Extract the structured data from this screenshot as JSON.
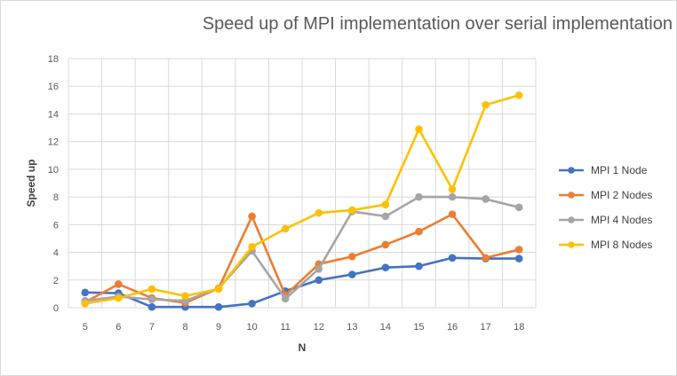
{
  "chart_data": {
    "type": "line",
    "title": "Speed up of MPI implementation over serial implementation",
    "xlabel": "N",
    "ylabel": "Speed up",
    "x": [
      5,
      6,
      7,
      8,
      9,
      10,
      11,
      12,
      13,
      14,
      15,
      16,
      17,
      18
    ],
    "ylim": [
      0,
      18
    ],
    "yticks": [
      0,
      2,
      4,
      6,
      8,
      10,
      12,
      14,
      16,
      18
    ],
    "grid": true,
    "legend_position": "right",
    "series": [
      {
        "name": "MPI 1 Node",
        "color": "#4472C4",
        "values": [
          1.1,
          1.05,
          0.05,
          0.05,
          0.05,
          0.3,
          1.2,
          2.0,
          2.4,
          2.9,
          3.0,
          3.6,
          3.55,
          3.55
        ]
      },
      {
        "name": "MPI 2 Nodes",
        "color": "#ED7D31",
        "values": [
          0.4,
          1.7,
          0.7,
          0.35,
          1.4,
          6.6,
          0.9,
          3.15,
          3.7,
          4.55,
          5.5,
          6.75,
          3.6,
          4.2
        ]
      },
      {
        "name": "MPI 4 Nodes",
        "color": "#A5A5A5",
        "values": [
          0.5,
          0.8,
          0.6,
          0.5,
          1.4,
          4.1,
          0.65,
          2.8,
          6.95,
          6.6,
          8.0,
          8.0,
          7.85,
          7.25
        ]
      },
      {
        "name": "MPI 8 Nodes",
        "color": "#FFC000",
        "values": [
          0.3,
          0.7,
          1.35,
          0.85,
          1.35,
          4.4,
          5.7,
          6.85,
          7.05,
          7.45,
          12.9,
          8.55,
          14.65,
          15.35
        ]
      }
    ]
  }
}
